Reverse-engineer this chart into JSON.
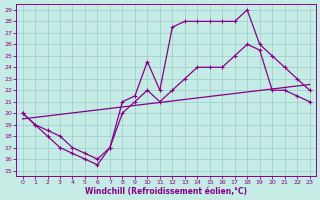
{
  "xlabel": "Windchill (Refroidissement éolien,°C)",
  "background_color": "#c5ebe5",
  "grid_color": "#99cccc",
  "line_color": "#880088",
  "xlim_min": -0.5,
  "xlim_max": 23.5,
  "ylim_min": 14.5,
  "ylim_max": 29.5,
  "xticks": [
    0,
    1,
    2,
    3,
    4,
    5,
    6,
    7,
    8,
    9,
    10,
    11,
    12,
    13,
    14,
    15,
    16,
    17,
    18,
    19,
    20,
    21,
    22,
    23
  ],
  "yticks": [
    15,
    16,
    17,
    18,
    19,
    20,
    21,
    22,
    23,
    24,
    25,
    26,
    27,
    28,
    29
  ],
  "line1_x": [
    0,
    1,
    2,
    3,
    4,
    5,
    6,
    7,
    8,
    9,
    10,
    11,
    12,
    13,
    14,
    15,
    16,
    17,
    18,
    19,
    20,
    21,
    22,
    23
  ],
  "line1_y": [
    20,
    19,
    18,
    17,
    16.5,
    16,
    15.5,
    17,
    21,
    21.5,
    24.5,
    22,
    27.5,
    28,
    28,
    28,
    28,
    28,
    29,
    26,
    25,
    24,
    23,
    22
  ],
  "line2_x": [
    0,
    1,
    2,
    3,
    4,
    5,
    6,
    7,
    8,
    9,
    10,
    11,
    12,
    13,
    14,
    15,
    16,
    17,
    18,
    19,
    20,
    21,
    22,
    23
  ],
  "line2_y": [
    20,
    19,
    18.5,
    18,
    17,
    16.5,
    16,
    17,
    20,
    21,
    22,
    21,
    22,
    23,
    24,
    24,
    24,
    25,
    26,
    25.5,
    22,
    22,
    21.5,
    21
  ],
  "line3_x": [
    0,
    23
  ],
  "line3_y": [
    19.5,
    22.5
  ],
  "lw": 0.9,
  "marker_size": 3.0,
  "marker_lw": 0.8,
  "tick_fontsize": 4.5,
  "xlabel_fontsize": 5.5
}
